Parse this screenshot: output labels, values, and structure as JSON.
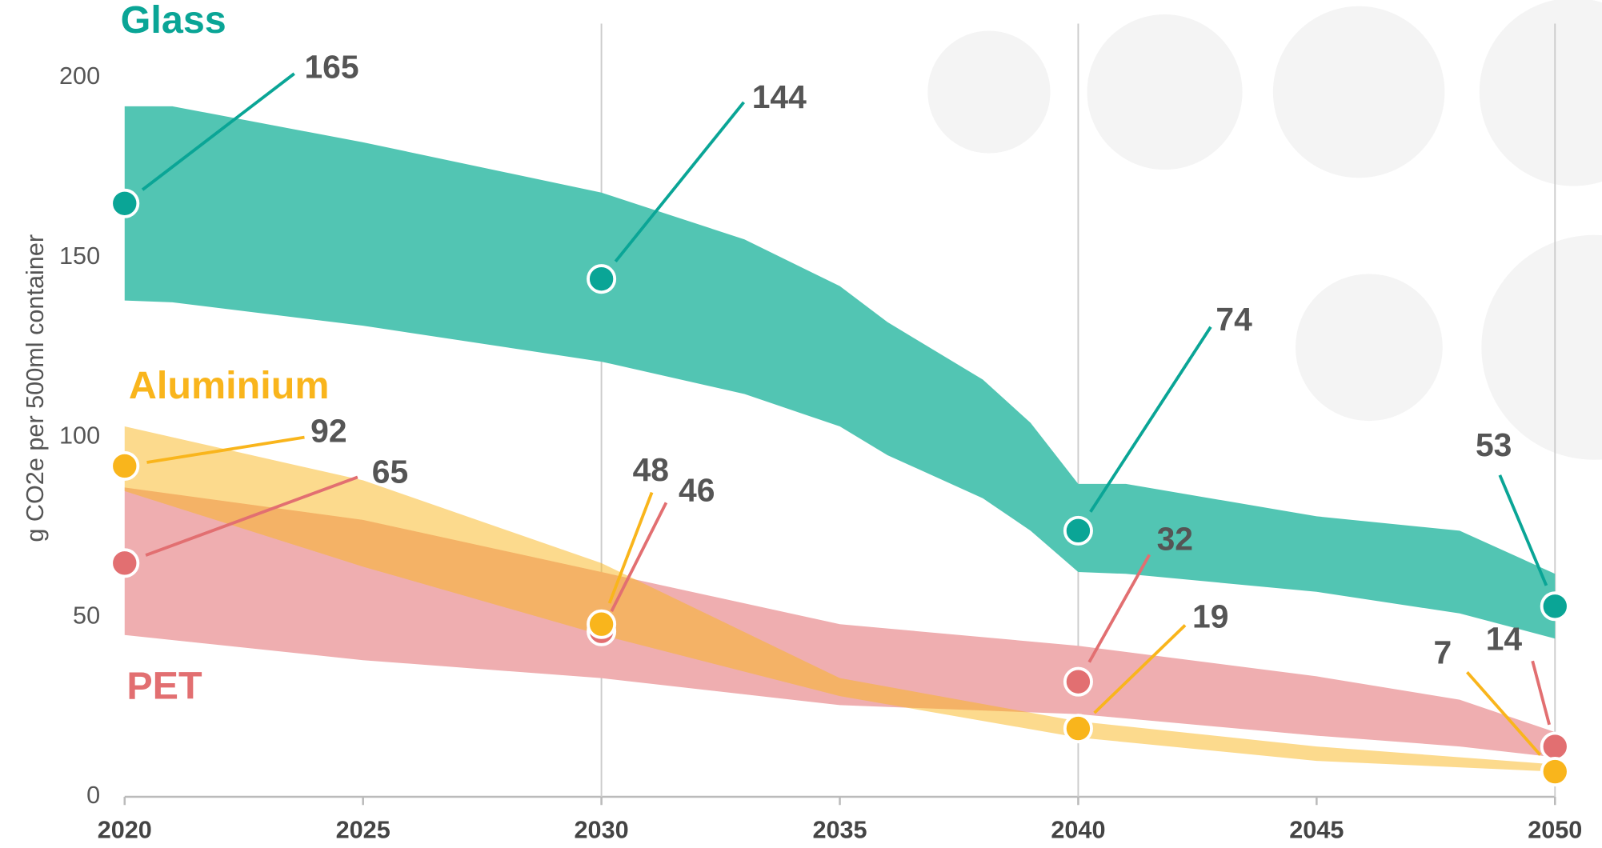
{
  "chart_data": {
    "type": "range-area",
    "ylabel": "g CO2e per 500ml container",
    "xlim": [
      2020,
      2050
    ],
    "ylim": [
      0,
      215
    ],
    "xticks": [
      2020,
      2025,
      2030,
      2035,
      2040,
      2045,
      2050
    ],
    "yticks": [
      0,
      50,
      100,
      150,
      200
    ],
    "xgrid": [
      2030,
      2040,
      2050
    ],
    "series": [
      {
        "name": "PET",
        "color": "#efaeb0",
        "marker_color": "#e26f71",
        "x": [
          2020,
          2025,
          2030,
          2035,
          2040,
          2045,
          2048,
          2050
        ],
        "upper": [
          86,
          77,
          62.5,
          48,
          42,
          33.5,
          27,
          18
        ],
        "lower": [
          45,
          38,
          33,
          25.5,
          23,
          17,
          14,
          11
        ],
        "point_x": [
          2020,
          2030,
          2040,
          2050
        ],
        "points": [
          65,
          46,
          32,
          14
        ]
      },
      {
        "name": "Aluminium",
        "color": "#f9b51c",
        "marker_color": "#f9b51c",
        "x": [
          2020,
          2025,
          2030,
          2035,
          2040,
          2045,
          2050
        ],
        "upper": [
          103,
          88,
          65,
          33,
          21,
          14,
          9
        ],
        "lower": [
          85,
          64,
          45,
          28,
          16.5,
          10,
          7
        ],
        "point_x": [
          2020,
          2030,
          2040,
          2050
        ],
        "points": [
          92,
          48,
          19,
          7
        ]
      },
      {
        "name": "Glass",
        "color": "#52c5b3",
        "marker_color": "#0aa596",
        "x": [
          2020,
          2021,
          2025,
          2030,
          2033,
          2035,
          2036,
          2038,
          2039,
          2040,
          2041,
          2045,
          2048,
          2050
        ],
        "upper": [
          192,
          192,
          182,
          168,
          155,
          142,
          132,
          116,
          104,
          87,
          87,
          78,
          74,
          62
        ],
        "lower": [
          138,
          137.5,
          131,
          121,
          112,
          103,
          95,
          83,
          74,
          62.5,
          62,
          57,
          51,
          44
        ],
        "point_x": [
          2020,
          2030,
          2040,
          2050
        ],
        "points": [
          165,
          144,
          74,
          53
        ]
      }
    ]
  }
}
